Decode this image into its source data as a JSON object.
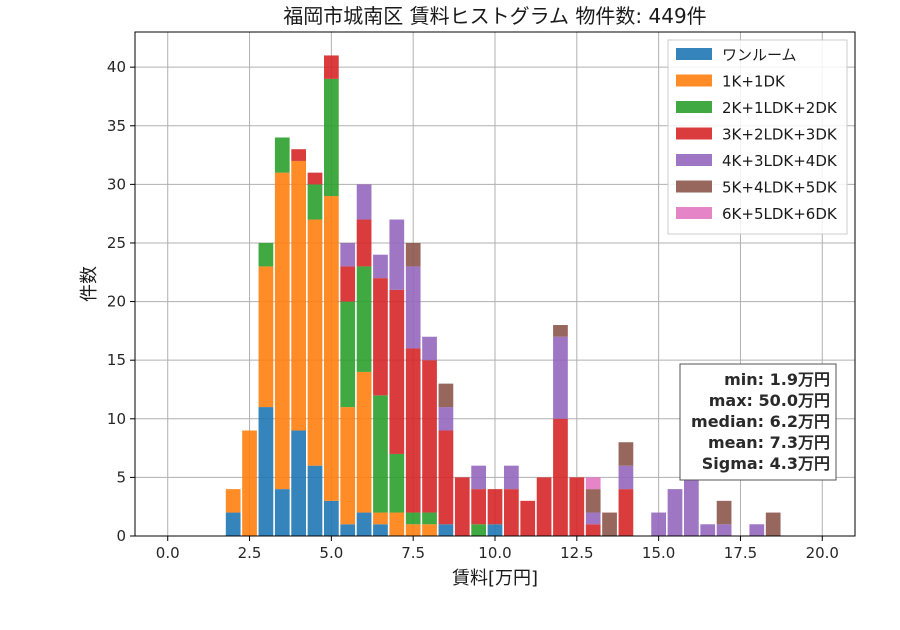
{
  "chart_data": {
    "type": "bar",
    "stacked": true,
    "title": "福岡市城南区 賃料ヒストグラム 物件数: 449件",
    "xlabel": "賃料[万円]",
    "ylabel": "件数",
    "xlim": [
      -1,
      21
    ],
    "ylim": [
      0,
      43
    ],
    "xticks": [
      "0.0",
      "2.5",
      "5.0",
      "7.5",
      "10.0",
      "12.5",
      "15.0",
      "17.5",
      "20.0"
    ],
    "yticks": [
      "0",
      "5",
      "10",
      "15",
      "20",
      "25",
      "30",
      "35",
      "40"
    ],
    "grid": true,
    "legend_position": "top-right",
    "bin_width": 0.5,
    "bins": [
      2.0,
      2.5,
      3.0,
      3.5,
      4.0,
      4.5,
      5.0,
      5.5,
      6.0,
      6.5,
      7.0,
      7.5,
      8.0,
      8.5,
      9.0,
      9.5,
      10.0,
      10.5,
      11.0,
      11.5,
      12.0,
      12.5,
      13.0,
      13.5,
      14.0,
      14.5,
      15.0,
      15.5,
      16.0,
      16.5,
      17.0,
      17.5,
      18.0,
      18.5
    ],
    "series": [
      {
        "name": "ワンルーム",
        "color": "#1f77b4",
        "values": [
          2,
          0,
          11,
          4,
          9,
          6,
          3,
          1,
          2,
          1,
          0,
          0,
          0,
          1,
          0,
          0,
          1,
          0,
          0,
          0,
          0,
          0,
          0,
          0,
          0,
          0,
          0,
          0,
          0,
          0,
          0,
          0,
          0,
          0
        ]
      },
      {
        "name": "1K+1DK",
        "color": "#ff7f0e",
        "values": [
          2,
          9,
          12,
          27,
          23,
          21,
          26,
          10,
          12,
          1,
          2,
          1,
          1,
          0,
          0,
          0,
          0,
          0,
          0,
          0,
          0,
          0,
          0,
          0,
          0,
          0,
          0,
          0,
          0,
          0,
          0,
          0,
          0,
          0
        ]
      },
      {
        "name": "2K+1LDK+2DK",
        "color": "#2ca02c",
        "values": [
          0,
          0,
          2,
          3,
          0,
          3,
          10,
          9,
          9,
          10,
          5,
          1,
          1,
          0,
          0,
          1,
          0,
          0,
          0,
          0,
          0,
          0,
          0,
          0,
          0,
          0,
          0,
          0,
          0,
          0,
          0,
          0,
          0,
          0
        ]
      },
      {
        "name": "3K+2LDK+3DK",
        "color": "#d62728",
        "values": [
          0,
          0,
          0,
          0,
          1,
          1,
          2,
          3,
          4,
          10,
          14,
          14,
          13,
          8,
          5,
          3,
          3,
          4,
          3,
          5,
          10,
          5,
          1,
          0,
          4,
          0,
          0,
          0,
          0,
          0,
          0,
          0,
          0,
          0
        ]
      },
      {
        "name": "4K+3LDK+4DK",
        "color": "#9467bd",
        "values": [
          0,
          0,
          0,
          0,
          0,
          0,
          0,
          2,
          3,
          2,
          6,
          7,
          2,
          2,
          0,
          2,
          0,
          2,
          0,
          0,
          7,
          0,
          1,
          0,
          2,
          0,
          2,
          4,
          5,
          1,
          1,
          0,
          1,
          0
        ]
      },
      {
        "name": "5K+4LDK+5DK",
        "color": "#8c564b",
        "values": [
          0,
          0,
          0,
          0,
          0,
          0,
          0,
          0,
          0,
          0,
          0,
          2,
          0,
          2,
          0,
          0,
          0,
          0,
          0,
          0,
          1,
          0,
          2,
          2,
          2,
          0,
          0,
          0,
          0,
          0,
          2,
          0,
          0,
          2
        ]
      },
      {
        "name": "6K+5LDK+6DK",
        "color": "#e377c2",
        "values": [
          0,
          0,
          0,
          0,
          0,
          0,
          0,
          0,
          0,
          0,
          0,
          0,
          0,
          0,
          0,
          0,
          0,
          0,
          0,
          0,
          0,
          0,
          1,
          0,
          0,
          0,
          0,
          0,
          0,
          0,
          0,
          0,
          0,
          0
        ]
      }
    ],
    "stats": {
      "min": "min: 1.9万円",
      "max": "max: 50.0万円",
      "median": "median: 6.2万円",
      "mean": "mean: 7.3万円",
      "sigma": "Sigma: 4.3万円"
    }
  }
}
